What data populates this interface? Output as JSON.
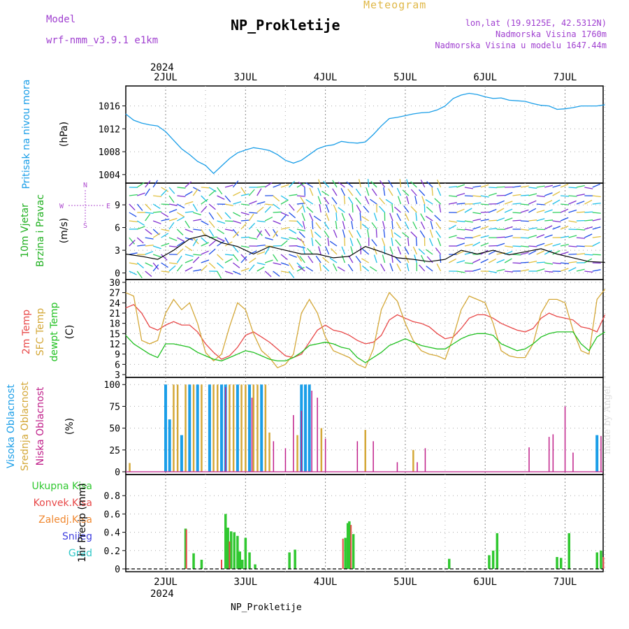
{
  "header": {
    "model_label": "Model",
    "model_value": "wrf-nmm_v3.9.1 e1km",
    "title": "NP_Prokletije",
    "meteogram": "Meteogram",
    "lonlat": "lon,lat (19.9125E, 42.5312N)",
    "elevation": "Nadmorska Visina 1760m",
    "model_elevation": "Nadmorska Visina u modelu 1647.44m",
    "bottom_name": "NP_Prokletije",
    "made_by": "made by Angel"
  },
  "colors": {
    "pressure": "#1a9ee8",
    "temp2m": "#e84848",
    "sfc_temp": "#d4a838",
    "dewpt": "#20c020",
    "high_cloud": "#1a9ee8",
    "mid_cloud": "#d4a838",
    "low_cloud": "#c0208a",
    "total_precip": "#30c830",
    "conv_precip": "#e84848",
    "frz_precip": "#f08830",
    "snow": "#4040e0",
    "hail": "#30c8c8"
  },
  "chart_data": [
    {
      "type": "line",
      "panel": "pressure",
      "ylabel_1": "Pritisak na nivou mora",
      "ylabel_2": "(hPa)",
      "year": "2024",
      "x_ticks": [
        "2JUL",
        "3JUL",
        "4JUL",
        "5JUL",
        "6JUL",
        "7JUL"
      ],
      "ylim": [
        1003,
        1019
      ],
      "y_ticks": [
        "1004",
        "1008",
        "1012",
        "1016"
      ],
      "x_days": [
        0.0,
        0.1,
        0.2,
        0.3,
        0.4,
        0.5,
        0.6,
        0.7,
        0.8,
        0.9,
        1.0,
        1.1,
        1.2,
        1.3,
        1.4,
        1.5,
        1.6,
        1.7,
        1.8,
        1.9,
        2.0,
        2.1,
        2.2,
        2.3,
        2.4,
        2.5,
        2.6,
        2.7,
        2.8,
        2.9,
        3.0,
        3.1,
        3.2,
        3.3,
        3.4,
        3.5,
        3.6,
        3.7,
        3.8,
        3.9,
        4.0,
        4.1,
        4.2,
        4.3,
        4.4,
        4.5,
        4.6,
        4.7,
        4.8,
        4.9,
        5.0,
        5.1,
        5.2,
        5.3,
        5.4,
        5.5,
        5.6,
        5.7,
        5.8,
        5.9,
        6.0
      ],
      "values": [
        1014.6,
        1013.5,
        1013.0,
        1012.7,
        1012.5,
        1011.5,
        1010.0,
        1008.5,
        1007.5,
        1006.3,
        1005.6,
        1004.2,
        1005.5,
        1006.8,
        1007.8,
        1008.3,
        1008.7,
        1008.5,
        1008.2,
        1007.5,
        1006.5,
        1006.0,
        1006.5,
        1007.5,
        1008.5,
        1009.0,
        1009.2,
        1009.8,
        1009.6,
        1009.5,
        1009.7,
        1011.0,
        1012.5,
        1013.8,
        1014.0,
        1014.3,
        1014.6,
        1014.8,
        1014.9,
        1015.3,
        1016.0,
        1017.3,
        1017.9,
        1018.2,
        1018.0,
        1017.6,
        1017.3,
        1017.4,
        1017.0,
        1016.9,
        1016.8,
        1016.4,
        1016.1,
        1016.0,
        1015.4,
        1015.5,
        1015.7,
        1016.0,
        1016.0,
        1016.0,
        1016.2
      ]
    },
    {
      "type": "line",
      "panel": "wind",
      "ylabel_1": "10m Vjetar",
      "ylabel_2": "Brzina i Pravac",
      "ylabel_3": "(m/s)",
      "compass": {
        "n": "N",
        "s": "S",
        "w": "W",
        "e": "E"
      },
      "ylim": [
        -0.5,
        11.5
      ],
      "y_ticks": [
        "0",
        "3",
        "6",
        "9"
      ],
      "x_days": [
        0.0,
        0.2,
        0.4,
        0.6,
        0.8,
        1.0,
        1.2,
        1.4,
        1.6,
        1.8,
        2.0,
        2.2,
        2.4,
        2.6,
        2.8,
        3.0,
        3.2,
        3.4,
        3.6,
        3.8,
        4.0,
        4.2,
        4.4,
        4.6,
        4.8,
        5.0,
        5.2,
        5.4,
        5.6,
        5.8,
        6.0
      ],
      "speed": [
        2.5,
        2.2,
        1.8,
        3.0,
        4.5,
        5.0,
        4.0,
        3.5,
        2.5,
        3.5,
        3.0,
        2.5,
        2.5,
        2.0,
        2.2,
        3.5,
        2.8,
        2.0,
        1.8,
        1.5,
        1.8,
        3.0,
        2.5,
        3.0,
        2.4,
        2.8,
        3.2,
        2.5,
        2.0,
        1.5,
        1.4
      ]
    },
    {
      "type": "line",
      "panel": "temperature",
      "ylabel_1": "2m Temp",
      "ylabel_2": "SFC Temp",
      "ylabel_3": "dewpt Temp",
      "ylabel_4": "(C)",
      "ylim": [
        3,
        30
      ],
      "y_ticks": [
        "3",
        "6",
        "9",
        "12",
        "15",
        "18",
        "21",
        "24",
        "27",
        "30"
      ],
      "x_days": [
        0.0,
        0.1,
        0.2,
        0.3,
        0.4,
        0.5,
        0.6,
        0.7,
        0.8,
        0.9,
        1.0,
        1.1,
        1.2,
        1.3,
        1.4,
        1.5,
        1.6,
        1.7,
        1.8,
        1.9,
        2.0,
        2.1,
        2.2,
        2.3,
        2.4,
        2.5,
        2.6,
        2.7,
        2.8,
        2.9,
        3.0,
        3.1,
        3.2,
        3.3,
        3.4,
        3.5,
        3.6,
        3.7,
        3.8,
        3.9,
        4.0,
        4.1,
        4.2,
        4.3,
        4.4,
        4.5,
        4.6,
        4.7,
        4.8,
        4.9,
        5.0,
        5.1,
        5.2,
        5.3,
        5.4,
        5.5,
        5.6,
        5.7,
        5.8,
        5.9,
        6.0
      ],
      "series": [
        {
          "name": "2m Temp",
          "values": [
            22.5,
            23.5,
            21.0,
            17.0,
            16.0,
            17.5,
            18.5,
            17.5,
            17.5,
            15.5,
            12.0,
            9.5,
            7.5,
            8.5,
            11.0,
            14.5,
            15.5,
            14.0,
            12.5,
            10.5,
            8.5,
            8.0,
            9.0,
            12.5,
            16.0,
            17.5,
            16.0,
            15.5,
            14.5,
            13.0,
            12.0,
            12.5,
            14.5,
            19.0,
            20.5,
            19.5,
            18.5,
            18.0,
            17.0,
            15.0,
            13.5,
            14.0,
            16.5,
            19.5,
            20.5,
            20.5,
            19.5,
            18.0,
            17.0,
            16.0,
            15.5,
            16.5,
            19.5,
            21.0,
            20.0,
            19.5,
            19.0,
            17.0,
            16.5,
            15.5,
            20.5
          ]
        },
        {
          "name": "SFC Temp",
          "values": [
            27.0,
            26.0,
            13.0,
            12.0,
            13.0,
            21.0,
            25.0,
            22.0,
            24.0,
            18.0,
            9.5,
            7.0,
            9.0,
            17.0,
            24.0,
            22.0,
            15.0,
            10.0,
            8.0,
            5.0,
            6.0,
            9.0,
            21.0,
            25.0,
            21.0,
            14.0,
            10.0,
            9.0,
            8.0,
            6.0,
            5.0,
            10.5,
            22.0,
            27.0,
            24.5,
            18.0,
            13.0,
            10.0,
            9.0,
            8.5,
            7.5,
            14.0,
            22.0,
            26.0,
            25.0,
            24.0,
            18.0,
            10.0,
            8.5,
            8.0,
            8.0,
            12.0,
            21.0,
            25.0,
            25.0,
            24.0,
            16.0,
            10.0,
            9.0,
            25.0,
            28.0
          ]
        },
        {
          "name": "dewpt Temp",
          "values": [
            14.5,
            12.0,
            10.5,
            9.0,
            8.0,
            12.0,
            12.0,
            11.5,
            11.0,
            9.5,
            8.5,
            7.5,
            7.0,
            8.0,
            9.0,
            10.0,
            9.5,
            8.5,
            7.5,
            7.0,
            7.0,
            8.0,
            9.5,
            11.5,
            12.0,
            12.5,
            12.0,
            11.0,
            10.5,
            8.0,
            6.5,
            8.0,
            9.5,
            11.5,
            12.5,
            13.5,
            12.5,
            11.5,
            11.0,
            10.5,
            10.5,
            12.0,
            13.5,
            14.5,
            15.0,
            15.0,
            14.5,
            12.0,
            11.0,
            10.0,
            10.5,
            12.0,
            14.0,
            15.0,
            15.5,
            15.5,
            15.5,
            12.0,
            10.0,
            14.0,
            15.5
          ]
        }
      ]
    },
    {
      "type": "bar",
      "panel": "clouds",
      "ylabel_1": "Visoka Oblacnost",
      "ylabel_2": "Srednja Oblacnost",
      "ylabel_3": "Niska Oblacnost",
      "ylabel_4": "(%)",
      "ylim": [
        0,
        105
      ],
      "y_ticks": [
        "0",
        "25",
        "50",
        "75",
        "100"
      ],
      "series": [
        {
          "name": "Visoka Oblacnost",
          "x_days": [
            0.5,
            0.55,
            0.7,
            0.8,
            0.9,
            1.05,
            1.2,
            1.25,
            1.4,
            1.55,
            1.7,
            2.2,
            2.25,
            2.3,
            5.9
          ],
          "values": [
            100,
            60,
            42,
            100,
            100,
            100,
            100,
            100,
            100,
            100,
            100,
            100,
            100,
            100,
            42
          ]
        },
        {
          "name": "Srednja Oblacnost",
          "x_days": [
            0.05,
            0.6,
            0.65,
            0.75,
            0.85,
            0.95,
            1.1,
            1.15,
            1.3,
            1.35,
            1.45,
            1.5,
            1.6,
            1.65,
            1.75,
            1.8,
            2.15,
            2.45,
            3.0,
            3.6
          ],
          "values": [
            10,
            100,
            100,
            100,
            100,
            100,
            100,
            100,
            100,
            100,
            100,
            100,
            100,
            100,
            100,
            45,
            42,
            50,
            48,
            25
          ]
        },
        {
          "name": "Niska Oblacnost",
          "x_days": [
            1.25,
            1.58,
            1.85,
            2.0,
            2.1,
            2.2,
            2.33,
            2.4,
            2.5,
            2.9,
            3.1,
            3.4,
            3.65,
            3.75,
            5.05,
            5.3,
            5.35,
            5.5,
            5.6,
            5.95
          ],
          "values": [
            97,
            85,
            35,
            27,
            65,
            70,
            93,
            85,
            38,
            35,
            35,
            11,
            11,
            27,
            28,
            40,
            43,
            75,
            22,
            41
          ]
        }
      ]
    },
    {
      "type": "bar",
      "panel": "precipitation",
      "ylabel_1": "1hr Precip",
      "ylabel_2": "(mm)",
      "legend": [
        "Ukupna Kisa",
        "Konvek.Kisa",
        "Zaledj.Kisa",
        "Snijeg",
        "Grad"
      ],
      "ylim": [
        0,
        1.0
      ],
      "y_ticks": [
        "0",
        "0.2",
        "0.4",
        "0.6",
        "0.8"
      ],
      "series": [
        {
          "name": "Ukupna Kisa",
          "x_days": [
            0.75,
            0.85,
            0.95,
            1.25,
            1.28,
            1.32,
            1.36,
            1.4,
            1.43,
            1.46,
            1.5,
            1.55,
            1.62,
            2.05,
            2.12,
            2.75,
            2.78,
            2.8,
            2.85,
            4.05,
            4.55,
            4.6,
            4.65,
            5.4,
            5.45,
            5.55,
            5.9,
            5.95
          ],
          "values": [
            0.44,
            0.17,
            0.1,
            0.6,
            0.45,
            0.41,
            0.4,
            0.36,
            0.19,
            0.1,
            0.34,
            0.18,
            0.05,
            0.18,
            0.21,
            0.34,
            0.5,
            0.52,
            0.38,
            0.11,
            0.15,
            0.2,
            0.39,
            0.13,
            0.12,
            0.39,
            0.18,
            0.2
          ]
        },
        {
          "name": "Konvek.Kisa",
          "x_days": [
            0.76,
            1.2,
            1.3,
            2.72,
            2.82,
            5.98
          ],
          "values": [
            0.43,
            0.1,
            0.3,
            0.33,
            0.48,
            0.13
          ]
        }
      ]
    }
  ]
}
